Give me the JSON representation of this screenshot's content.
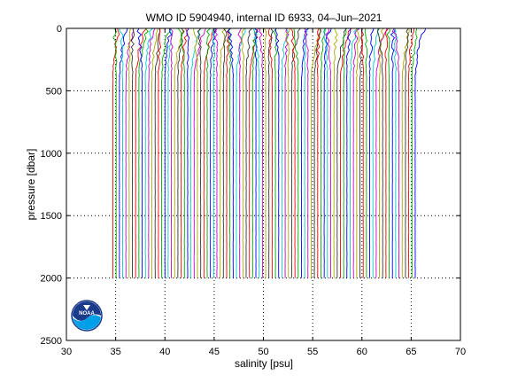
{
  "chart_data": {
    "type": "line",
    "title": "WMO ID 5904940, internal ID 6933, 04–Jun–2021",
    "xlabel": "salinity [psu]",
    "ylabel": "pressure [dbar]",
    "xlim": [
      30,
      70
    ],
    "ylim": [
      0,
      2500
    ],
    "y_reversed": true,
    "grid": "dotted",
    "xticks": [
      "30",
      "35",
      "40",
      "45",
      "50",
      "55",
      "60",
      "65",
      "70"
    ],
    "yticks": [
      "0",
      "500",
      "1000",
      "1500",
      "2000",
      "2500"
    ],
    "profiles": {
      "count": 94,
      "first_deep_salinity": 34.72,
      "offset_per_profile": 0.33,
      "max_pressure": 2000,
      "colors": [
        "#ff0000",
        "#00aa00",
        "#0000ff",
        "#00cccc",
        "#cc00cc",
        "#aaaa00",
        "#333333"
      ]
    }
  },
  "logo": {
    "name": "noaa-logo",
    "text": "NOAA"
  }
}
